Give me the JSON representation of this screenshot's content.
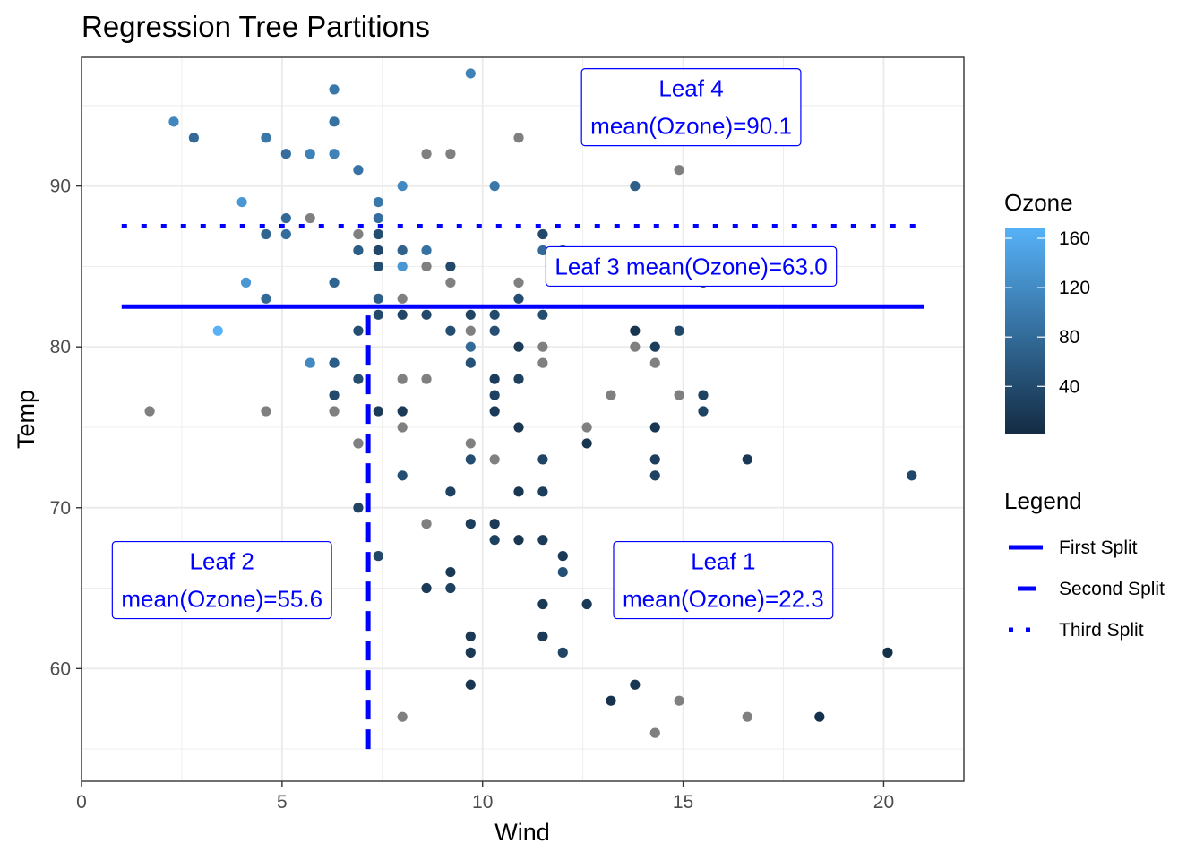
{
  "chart_data": {
    "type": "scatter",
    "title": "Regression Tree Partitions",
    "xlabel": "Wind",
    "ylabel": "Temp",
    "xlim": [
      0,
      22
    ],
    "ylim": [
      53,
      98
    ],
    "x_ticks": [
      0,
      5,
      10,
      15,
      20
    ],
    "y_ticks": [
      60,
      70,
      80,
      90
    ],
    "grid": true,
    "points": [
      {
        "x": 1.7,
        "y": 76,
        "ozone": null
      },
      {
        "x": 2.3,
        "y": 94,
        "ozone": 115
      },
      {
        "x": 2.8,
        "y": 93,
        "ozone": 80
      },
      {
        "x": 3.4,
        "y": 81,
        "ozone": 168
      },
      {
        "x": 4.0,
        "y": 89,
        "ozone": 135
      },
      {
        "x": 4.1,
        "y": 84,
        "ozone": 135
      },
      {
        "x": 4.6,
        "y": 93,
        "ozone": 96
      },
      {
        "x": 4.6,
        "y": 87,
        "ozone": 73
      },
      {
        "x": 4.6,
        "y": 83,
        "ozone": 78
      },
      {
        "x": 4.6,
        "y": 76,
        "ozone": null
      },
      {
        "x": 5.1,
        "y": 92,
        "ozone": 85
      },
      {
        "x": 5.1,
        "y": 88,
        "ozone": 79
      },
      {
        "x": 5.1,
        "y": 87,
        "ozone": 84
      },
      {
        "x": 5.7,
        "y": 92,
        "ozone": 110
      },
      {
        "x": 5.7,
        "y": 88,
        "ozone": null
      },
      {
        "x": 5.7,
        "y": 79,
        "ozone": 118
      },
      {
        "x": 6.3,
        "y": 96,
        "ozone": 97
      },
      {
        "x": 6.3,
        "y": 94,
        "ozone": 89
      },
      {
        "x": 6.3,
        "y": 92,
        "ozone": 110
      },
      {
        "x": 6.3,
        "y": 84,
        "ozone": 73
      },
      {
        "x": 6.3,
        "y": 79,
        "ozone": 64
      },
      {
        "x": 6.3,
        "y": 77,
        "ozone": 40
      },
      {
        "x": 6.3,
        "y": 76,
        "ozone": null
      },
      {
        "x": 6.9,
        "y": 91,
        "ozone": 91
      },
      {
        "x": 6.9,
        "y": 87,
        "ozone": null
      },
      {
        "x": 6.9,
        "y": 86,
        "ozone": 64
      },
      {
        "x": 6.9,
        "y": 81,
        "ozone": 44
      },
      {
        "x": 6.9,
        "y": 78,
        "ozone": 45
      },
      {
        "x": 6.9,
        "y": 74,
        "ozone": 28
      },
      {
        "x": 6.9,
        "y": 74,
        "ozone": null
      },
      {
        "x": 6.9,
        "y": 70,
        "ozone": 32
      },
      {
        "x": 7.4,
        "y": 89,
        "ozone": 97
      },
      {
        "x": 7.4,
        "y": 88,
        "ozone": 85
      },
      {
        "x": 7.4,
        "y": 87,
        "ozone": 44
      },
      {
        "x": 7.4,
        "y": 86,
        "ozone": 35
      },
      {
        "x": 7.4,
        "y": 85,
        "ozone": 44
      },
      {
        "x": 7.4,
        "y": 83,
        "ozone": 66
      },
      {
        "x": 7.4,
        "y": 82,
        "ozone": 39
      },
      {
        "x": 7.4,
        "y": 76,
        "ozone": 21
      },
      {
        "x": 7.4,
        "y": 67,
        "ozone": 36
      },
      {
        "x": 8.0,
        "y": 90,
        "ozone": 118
      },
      {
        "x": 8.0,
        "y": 86,
        "ozone": 71
      },
      {
        "x": 8.0,
        "y": 85,
        "ozone": 135
      },
      {
        "x": 8.0,
        "y": 83,
        "ozone": null
      },
      {
        "x": 8.0,
        "y": 82,
        "ozone": 35
      },
      {
        "x": 8.0,
        "y": 78,
        "ozone": null
      },
      {
        "x": 8.0,
        "y": 76,
        "ozone": 21
      },
      {
        "x": 8.0,
        "y": 75,
        "ozone": null
      },
      {
        "x": 8.0,
        "y": 72,
        "ozone": 45
      },
      {
        "x": 8.0,
        "y": 57,
        "ozone": null
      },
      {
        "x": 8.6,
        "y": 92,
        "ozone": null
      },
      {
        "x": 8.6,
        "y": 86,
        "ozone": 89
      },
      {
        "x": 8.6,
        "y": 85,
        "ozone": null
      },
      {
        "x": 8.6,
        "y": 82,
        "ozone": 38
      },
      {
        "x": 8.6,
        "y": 78,
        "ozone": null
      },
      {
        "x": 8.6,
        "y": 69,
        "ozone": null
      },
      {
        "x": 8.6,
        "y": 65,
        "ozone": 20
      },
      {
        "x": 9.2,
        "y": 92,
        "ozone": null
      },
      {
        "x": 9.2,
        "y": 85,
        "ozone": 38
      },
      {
        "x": 9.2,
        "y": 84,
        "ozone": null
      },
      {
        "x": 9.2,
        "y": 81,
        "ozone": 44
      },
      {
        "x": 9.2,
        "y": 71,
        "ozone": 29
      },
      {
        "x": 9.2,
        "y": 66,
        "ozone": 18
      },
      {
        "x": 9.2,
        "y": 65,
        "ozone": 28
      },
      {
        "x": 9.7,
        "y": 97,
        "ozone": 110
      },
      {
        "x": 9.7,
        "y": 82,
        "ozone": 32
      },
      {
        "x": 9.7,
        "y": 81,
        "ozone": null
      },
      {
        "x": 9.7,
        "y": 80,
        "ozone": 80
      },
      {
        "x": 9.7,
        "y": 79,
        "ozone": 48
      },
      {
        "x": 9.7,
        "y": 74,
        "ozone": null
      },
      {
        "x": 9.7,
        "y": 73,
        "ozone": 44
      },
      {
        "x": 9.7,
        "y": 69,
        "ozone": 23
      },
      {
        "x": 9.7,
        "y": 62,
        "ozone": 18
      },
      {
        "x": 9.7,
        "y": 61,
        "ozone": 18
      },
      {
        "x": 9.7,
        "y": 59,
        "ozone": 14
      },
      {
        "x": 10.3,
        "y": 90,
        "ozone": 97
      },
      {
        "x": 10.3,
        "y": 82,
        "ozone": 40
      },
      {
        "x": 10.3,
        "y": 81,
        "ozone": 45
      },
      {
        "x": 10.3,
        "y": 78,
        "ozone": 22
      },
      {
        "x": 10.3,
        "y": 77,
        "ozone": 30
      },
      {
        "x": 10.3,
        "y": 76,
        "ozone": 20
      },
      {
        "x": 10.3,
        "y": 73,
        "ozone": null
      },
      {
        "x": 10.3,
        "y": 69,
        "ozone": 20
      },
      {
        "x": 10.3,
        "y": 68,
        "ozone": 28
      },
      {
        "x": 10.9,
        "y": 93,
        "ozone": null
      },
      {
        "x": 10.9,
        "y": 84,
        "ozone": null
      },
      {
        "x": 10.9,
        "y": 83,
        "ozone": 44
      },
      {
        "x": 10.9,
        "y": 80,
        "ozone": 21
      },
      {
        "x": 10.9,
        "y": 78,
        "ozone": 28
      },
      {
        "x": 10.9,
        "y": 75,
        "ozone": 16
      },
      {
        "x": 10.9,
        "y": 71,
        "ozone": 14
      },
      {
        "x": 10.9,
        "y": 68,
        "ozone": 16
      },
      {
        "x": 11.5,
        "y": 87,
        "ozone": 39
      },
      {
        "x": 11.5,
        "y": 86,
        "ozone": 78
      },
      {
        "x": 11.5,
        "y": 82,
        "ozone": 44
      },
      {
        "x": 11.5,
        "y": 80,
        "ozone": null
      },
      {
        "x": 11.5,
        "y": 79,
        "ozone": null
      },
      {
        "x": 11.5,
        "y": 73,
        "ozone": 32
      },
      {
        "x": 11.5,
        "y": 71,
        "ozone": 23
      },
      {
        "x": 11.5,
        "y": 68,
        "ozone": 21
      },
      {
        "x": 11.5,
        "y": 64,
        "ozone": 18
      },
      {
        "x": 11.5,
        "y": 62,
        "ozone": 20
      },
      {
        "x": 12.0,
        "y": 86,
        "ozone": 64
      },
      {
        "x": 12.0,
        "y": 67,
        "ozone": 19
      },
      {
        "x": 12.0,
        "y": 66,
        "ozone": 47
      },
      {
        "x": 12.0,
        "y": 61,
        "ozone": 32
      },
      {
        "x": 12.6,
        "y": 75,
        "ozone": null
      },
      {
        "x": 12.6,
        "y": 74,
        "ozone": 14
      },
      {
        "x": 12.6,
        "y": 64,
        "ozone": 20
      },
      {
        "x": 13.2,
        "y": 77,
        "ozone": null
      },
      {
        "x": 13.2,
        "y": 58,
        "ozone": 11
      },
      {
        "x": 13.8,
        "y": 90,
        "ozone": 66
      },
      {
        "x": 13.8,
        "y": 81,
        "ozone": 13
      },
      {
        "x": 13.8,
        "y": 80,
        "ozone": null
      },
      {
        "x": 13.8,
        "y": 59,
        "ozone": 16
      },
      {
        "x": 14.3,
        "y": 80,
        "ozone": 23
      },
      {
        "x": 14.3,
        "y": 79,
        "ozone": null
      },
      {
        "x": 14.3,
        "y": 75,
        "ozone": 16
      },
      {
        "x": 14.3,
        "y": 73,
        "ozone": 24
      },
      {
        "x": 14.3,
        "y": 72,
        "ozone": 30
      },
      {
        "x": 14.3,
        "y": 56,
        "ozone": null
      },
      {
        "x": 14.9,
        "y": 91,
        "ozone": null
      },
      {
        "x": 14.9,
        "y": 81,
        "ozone": 37
      },
      {
        "x": 14.9,
        "y": 77,
        "ozone": null
      },
      {
        "x": 14.9,
        "y": 58,
        "ozone": null
      },
      {
        "x": 15.5,
        "y": 84,
        "ozone": 45
      },
      {
        "x": 15.5,
        "y": 77,
        "ozone": 31
      },
      {
        "x": 15.5,
        "y": 76,
        "ozone": 31
      },
      {
        "x": 16.6,
        "y": 73,
        "ozone": 19
      },
      {
        "x": 16.6,
        "y": 57,
        "ozone": null
      },
      {
        "x": 18.4,
        "y": 57,
        "ozone": 8
      },
      {
        "x": 20.1,
        "y": 61,
        "ozone": 7
      },
      {
        "x": 20.7,
        "y": 72,
        "ozone": 37
      }
    ],
    "na_color": "#808080",
    "splits": [
      {
        "name": "First Split",
        "style": "solid",
        "orientation": "horizontal",
        "value": 82.5,
        "from": 1,
        "to": 21
      },
      {
        "name": "Second Split",
        "style": "dashed",
        "orientation": "vertical",
        "value": 7.15,
        "from": 55,
        "to": 82.5
      },
      {
        "name": "Third Split",
        "style": "dotted",
        "orientation": "horizontal",
        "value": 87.5,
        "from": 1,
        "to": 21
      }
    ],
    "split_color": "#0000ff",
    "labels": [
      {
        "line1": "Leaf 4",
        "line2": "mean(Ozone)=90.1",
        "x": 15.2,
        "y": 94.9
      },
      {
        "line1": "Leaf 3 mean(Ozone)=63.0",
        "line2": "",
        "x": 15.2,
        "y": 85
      },
      {
        "line1": "Leaf 2",
        "line2": "mean(Ozone)=55.6",
        "x": 3.5,
        "y": 65.5
      },
      {
        "line1": "Leaf 1",
        "line2": "mean(Ozone)=22.3",
        "x": 16.0,
        "y": 65.5
      }
    ],
    "color_scale": {
      "title": "Ozone",
      "low_color": "#132B43",
      "high_color": "#56B1F7",
      "min": 1,
      "max": 168,
      "ticks": [
        40,
        80,
        120,
        160
      ]
    },
    "legend": {
      "title": "Legend",
      "position": "right",
      "items": [
        "First Split",
        "Second Split",
        "Third Split"
      ]
    }
  }
}
